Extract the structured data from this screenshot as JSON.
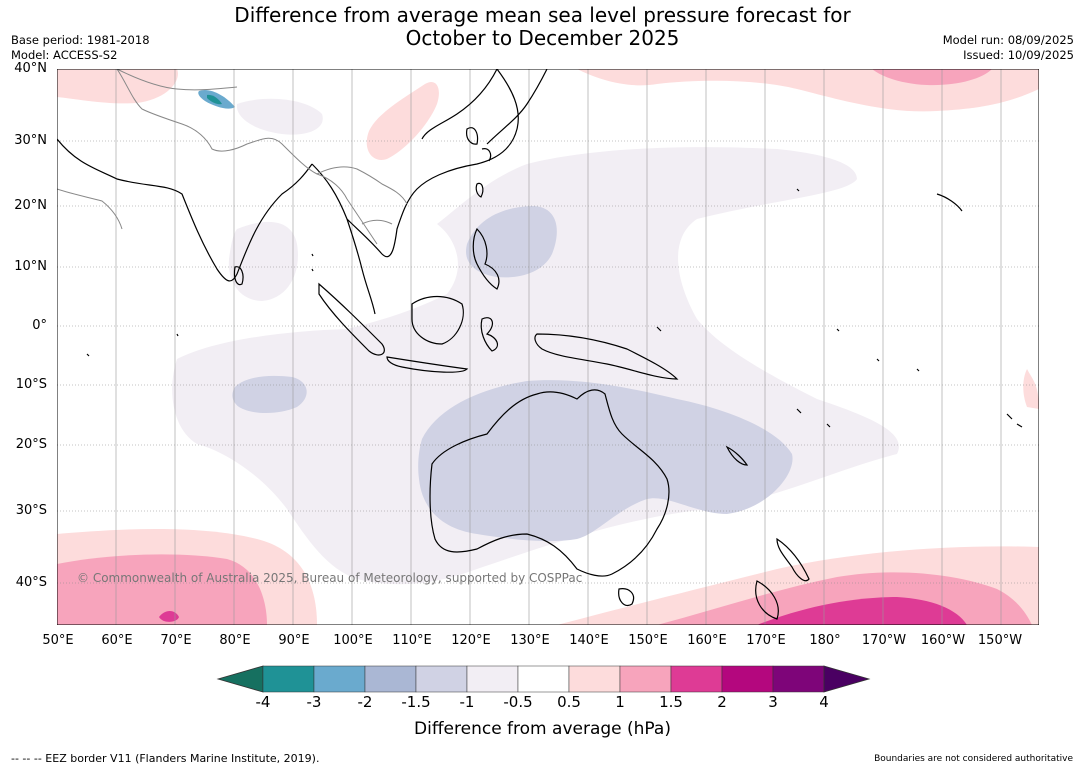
{
  "title_line1": "Difference from average mean sea level pressure forecast for",
  "title_line2": "October to December 2025",
  "base_period": "Base period: 1981-2018",
  "model": "Model: ACCESS-S2",
  "model_run": "Model run: 08/09/2025",
  "issued": "Issued: 10/09/2025",
  "lat_labels": [
    "40°N",
    "30°N",
    "20°N",
    "10°N",
    "0°",
    "10°S",
    "20°S",
    "30°S",
    "40°S"
  ],
  "lon_labels": [
    "50°E",
    "60°E",
    "70°E",
    "80°E",
    "90°E",
    "100°E",
    "110°E",
    "120°E",
    "130°E",
    "140°E",
    "150°E",
    "160°E",
    "170°E",
    "180°",
    "170°W",
    "160°W",
    "150°W"
  ],
  "copyright": "© Commonwealth of Australia 2025, Bureau of Meteorology, supported by COSPPac",
  "colorbar": {
    "title": "Difference from average (hPa)",
    "tick_labels": [
      "-4",
      "-3",
      "-2",
      "-1.5",
      "-1",
      "-0.5",
      "0.5",
      "1",
      "1.5",
      "2",
      "3",
      "4"
    ],
    "colors": [
      "#167060",
      "#1f9296",
      "#6aaace",
      "#aab7d4",
      "#d0d2e4",
      "#f2eef4",
      "#ffffff",
      "#fddcdc",
      "#f7a4bc",
      "#de3b95",
      "#b4077e",
      "#7e0579",
      "#4a0062"
    ]
  },
  "footer_left": "--  --  -- EEZ border V11 (Flanders Marine Institute, 2019).",
  "footer_right": "Boundaries are not considered authoritative"
}
